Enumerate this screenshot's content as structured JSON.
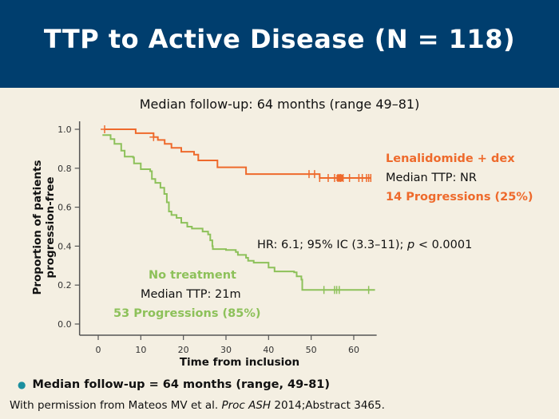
{
  "header": {
    "title": "TTP to Active Disease (N = 118)"
  },
  "subtitle": "Median follow-up: 64 months (range 49–81)",
  "colors": {
    "header_bg": "#003e6e",
    "lenalidomide": "#ee6a2c",
    "no_treatment": "#8dc15a",
    "background": "#f4efe2"
  },
  "annotations": {
    "lenalidomide_name": "Lenalidomide + dex",
    "lenalidomide_median": "Median TTP: NR",
    "lenalidomide_progressions": "14 Progressions (25%)",
    "hr_prefix": "HR: 6.1; 95% IC (3.3–11); ",
    "hr_p": "p",
    "hr_suffix": " < 0.0001",
    "no_treatment_name": "No treatment",
    "no_treatment_median": "Median TTP: 21m",
    "no_treatment_progressions": "53 Progressions (85%)"
  },
  "bullet": "Median follow-up = 64 months (range, 49-81)",
  "footnote": {
    "prefix": "With permission from Mateos MV et al. ",
    "journal": "Proc ASH",
    "suffix": " 2014;Abstract 3465."
  },
  "chart_data": {
    "type": "line",
    "subtype": "kaplan-meier step",
    "title": "TTP to Active Disease (N = 118)",
    "xlabel": "Time from inclusion",
    "ylabel": "Proportion of patients progression-free",
    "xlim": [
      -4,
      65
    ],
    "ylim": [
      0,
      1.0
    ],
    "xticks": [
      0,
      10,
      20,
      30,
      40,
      50,
      60
    ],
    "xtick_labels": [
      "0",
      "10",
      "20",
      "30",
      "40",
      "50",
      "60"
    ],
    "yticks": [
      0.0,
      0.2,
      0.4,
      0.6,
      0.8,
      1.0
    ],
    "ytick_labels": [
      "0.0",
      "0.2",
      "0.4",
      "0.6",
      "0.8",
      "1.0"
    ],
    "grid": false,
    "series": [
      {
        "name": "Lenalidomide + dex",
        "color": "#ee6a2c",
        "steps": [
          [
            1.5,
            1.0
          ],
          [
            8.8,
            0.98
          ],
          [
            13.0,
            0.96
          ],
          [
            14.0,
            0.945
          ],
          [
            15.6,
            0.925
          ],
          [
            17.2,
            0.905
          ],
          [
            19.5,
            0.885
          ],
          [
            22.5,
            0.87
          ],
          [
            23.5,
            0.84
          ],
          [
            28.0,
            0.805
          ],
          [
            34.7,
            0.77
          ],
          [
            52.0,
            0.75
          ],
          [
            64.0,
            0.75
          ]
        ],
        "censored": [
          1.5,
          13.0,
          49.5,
          50.8,
          52.0,
          54.0,
          55.5,
          56.3,
          56.7,
          57.0,
          57.5,
          59.0,
          61.2,
          62.0,
          63.0,
          63.5,
          64.0
        ]
      },
      {
        "name": "No treatment",
        "color": "#8dc15a",
        "steps": [
          [
            1.0,
            0.97
          ],
          [
            2.9,
            0.95
          ],
          [
            3.8,
            0.925
          ],
          [
            5.4,
            0.89
          ],
          [
            6.2,
            0.86
          ],
          [
            8.2,
            0.855
          ],
          [
            8.4,
            0.825
          ],
          [
            10.0,
            0.795
          ],
          [
            12.2,
            0.785
          ],
          [
            12.6,
            0.745
          ],
          [
            13.4,
            0.725
          ],
          [
            14.6,
            0.7
          ],
          [
            15.5,
            0.668
          ],
          [
            16.1,
            0.625
          ],
          [
            16.6,
            0.578
          ],
          [
            17.2,
            0.56
          ],
          [
            18.4,
            0.545
          ],
          [
            19.5,
            0.52
          ],
          [
            20.2,
            0.52
          ],
          [
            20.9,
            0.5
          ],
          [
            22.0,
            0.49
          ],
          [
            24.5,
            0.475
          ],
          [
            25.8,
            0.46
          ],
          [
            26.3,
            0.43
          ],
          [
            26.8,
            0.4
          ],
          [
            26.9,
            0.385
          ],
          [
            30.0,
            0.38
          ],
          [
            32.3,
            0.37
          ],
          [
            32.8,
            0.355
          ],
          [
            34.7,
            0.34
          ],
          [
            35.2,
            0.325
          ],
          [
            36.5,
            0.315
          ],
          [
            40.0,
            0.29
          ],
          [
            41.4,
            0.27
          ],
          [
            46.0,
            0.265
          ],
          [
            46.6,
            0.245
          ],
          [
            47.7,
            0.228
          ],
          [
            47.9,
            0.175
          ],
          [
            65.0,
            0.175
          ]
        ],
        "censored": [
          53.0,
          55.5,
          56.0,
          56.6,
          63.5
        ]
      }
    ]
  }
}
